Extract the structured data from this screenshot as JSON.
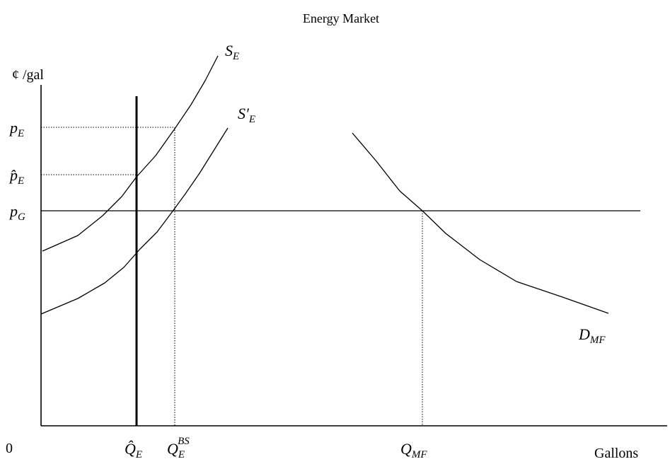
{
  "title": "Energy Market",
  "y_axis_unit": "¢ /gal",
  "x_axis_label": "Gallons",
  "origin_label": "0",
  "price_levels": {
    "p_E": {
      "symbol": "p",
      "subscript": "E"
    },
    "p_hat_E": {
      "symbol": "p̂",
      "subscript": "E"
    },
    "p_G": {
      "symbol": "p",
      "subscript": "G"
    }
  },
  "quantity_levels": {
    "Q_hat_E": {
      "symbol": "Q̂",
      "subscript": "E"
    },
    "Q_E_BS": {
      "symbol": "Q",
      "subscript": "E",
      "superscript": "BS"
    },
    "Q_MF": {
      "symbol": "Q",
      "subscript": "MF"
    }
  },
  "curves": {
    "S_E": {
      "symbol": "S",
      "subscript": "E"
    },
    "S_E_prime": {
      "symbol": "S′",
      "subscript": "E"
    },
    "D_MF": {
      "symbol": "D",
      "subscript": "MF"
    }
  }
}
